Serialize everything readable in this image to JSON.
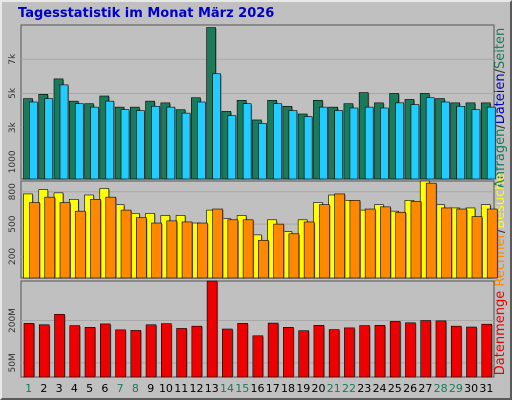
{
  "page": {
    "title": "Tagesstatistik im Monat März 2026"
  },
  "colors": {
    "background": "#c0c0c0",
    "title": "#0000cc",
    "anfragen": "#1a7a5a",
    "dateien": "#22ccff",
    "seiten": "#ffff00",
    "rechner": "#ff8800",
    "datenmenge": "#ee0000",
    "weekday_label": "#000000",
    "weekend_label": "#1a7a5a"
  },
  "chart_data": [
    {
      "type": "bar",
      "panel": "top",
      "ylim": [
        0,
        9000
      ],
      "yticks": [
        1000,
        3000,
        5000,
        7000
      ],
      "ytick_labels": [
        "1000",
        "3k",
        "5k",
        "7k"
      ],
      "grid": true,
      "categories": [
        "1",
        "2",
        "3",
        "4",
        "5",
        "6",
        "7",
        "8",
        "9",
        "10",
        "11",
        "12",
        "13",
        "14",
        "15",
        "16",
        "17",
        "18",
        "19",
        "20",
        "21",
        "22",
        "23",
        "24",
        "25",
        "26",
        "27",
        "28",
        "29",
        "30",
        "31"
      ],
      "series": [
        {
          "name": "Anfragen",
          "color": "#1a7a5a",
          "values": [
            4700,
            4950,
            5850,
            4550,
            4400,
            4850,
            4200,
            4200,
            4550,
            4450,
            4050,
            4750,
            8850,
            3950,
            4600,
            3450,
            4600,
            4250,
            3800,
            4600,
            4200,
            4400,
            5050,
            4450,
            5000,
            4650,
            5000,
            4700,
            4450,
            4450,
            4450
          ]
        },
        {
          "name": "Dateien",
          "color": "#22ccff",
          "values": [
            4500,
            4700,
            5500,
            4400,
            4200,
            4550,
            4050,
            4000,
            4250,
            4200,
            3850,
            4500,
            6150,
            3700,
            4400,
            3250,
            4400,
            4000,
            3650,
            4200,
            4000,
            4150,
            4200,
            4150,
            4450,
            4350,
            4750,
            4500,
            4250,
            4050,
            4200
          ]
        }
      ]
    },
    {
      "type": "bar",
      "panel": "middle",
      "ylim": [
        0,
        900
      ],
      "yticks": [
        200,
        500,
        800
      ],
      "ytick_labels": [
        "200",
        "500",
        "800"
      ],
      "grid": true,
      "categories": [
        "1",
        "2",
        "3",
        "4",
        "5",
        "6",
        "7",
        "8",
        "9",
        "10",
        "11",
        "12",
        "13",
        "14",
        "15",
        "16",
        "17",
        "18",
        "19",
        "20",
        "21",
        "22",
        "23",
        "24",
        "25",
        "26",
        "27",
        "28",
        "29",
        "30",
        "31"
      ],
      "series": [
        {
          "name": "Seiten",
          "color": "#ffff00",
          "values": [
            780,
            820,
            790,
            730,
            770,
            830,
            680,
            600,
            600,
            580,
            580,
            510,
            630,
            550,
            580,
            400,
            540,
            430,
            540,
            700,
            770,
            720,
            630,
            680,
            620,
            720,
            900,
            680,
            650,
            650,
            680
          ]
        },
        {
          "name": "Rechner",
          "color": "#ff8800",
          "values": [
            700,
            750,
            700,
            620,
            730,
            750,
            630,
            560,
            510,
            530,
            520,
            510,
            640,
            540,
            540,
            350,
            500,
            410,
            520,
            680,
            780,
            720,
            640,
            660,
            610,
            710,
            880,
            650,
            640,
            570,
            640
          ]
        }
      ]
    },
    {
      "type": "bar",
      "panel": "bottom",
      "ylim": [
        0,
        340
      ],
      "yticks": [
        50,
        200
      ],
      "ytick_labels": [
        "50M",
        "200M"
      ],
      "grid": true,
      "categories": [
        "1",
        "2",
        "3",
        "4",
        "5",
        "6",
        "7",
        "8",
        "9",
        "10",
        "11",
        "12",
        "13",
        "14",
        "15",
        "16",
        "17",
        "18",
        "19",
        "20",
        "21",
        "22",
        "23",
        "24",
        "25",
        "26",
        "27",
        "28",
        "29",
        "30",
        "31"
      ],
      "series": [
        {
          "name": "Datenmenge",
          "color": "#ee0000",
          "values": [
            190,
            185,
            222,
            182,
            176,
            188,
            167,
            165,
            185,
            189,
            172,
            180,
            340,
            170,
            190,
            146,
            191,
            176,
            164,
            183,
            168,
            174,
            182,
            183,
            197,
            192,
            200,
            199,
            180,
            177,
            187
          ]
        }
      ]
    }
  ],
  "x_axis": {
    "labels": [
      "1",
      "2",
      "3",
      "4",
      "5",
      "6",
      "7",
      "8",
      "9",
      "10",
      "11",
      "12",
      "13",
      "14",
      "15",
      "16",
      "17",
      "18",
      "19",
      "20",
      "21",
      "22",
      "23",
      "24",
      "25",
      "26",
      "27",
      "28",
      "29",
      "30",
      "31"
    ],
    "weekend": [
      1,
      7,
      8,
      14,
      15,
      21,
      22,
      28,
      29
    ]
  },
  "right_legend": {
    "top": [
      {
        "text": "Anfragen",
        "color": "#1a7a5a"
      },
      {
        "text": "/",
        "color": "#333333"
      },
      {
        "text": "Dateien",
        "color": "#0000cc"
      },
      {
        "text": "/",
        "color": "#333333"
      },
      {
        "text": "Seiten",
        "color": "#1a7a5a"
      }
    ],
    "middle": [
      {
        "text": "Rechner",
        "color": "#ff8800"
      },
      {
        "text": "/",
        "color": "#333333"
      },
      {
        "text": "Besuche",
        "color": "#ffff00"
      }
    ],
    "bottom": [
      {
        "text": "Datenmenge",
        "color": "#ee0000"
      }
    ]
  }
}
